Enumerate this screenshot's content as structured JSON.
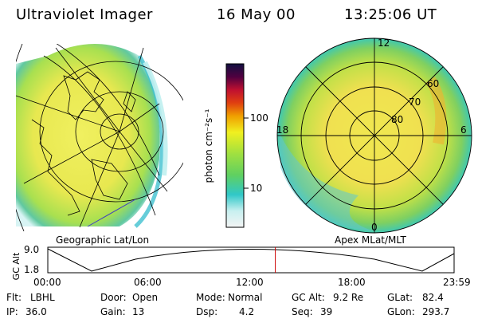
{
  "header": {
    "instrument": "Ultraviolet Imager",
    "date": "16 May 00",
    "time": "13:25:06 UT"
  },
  "geo_panel": {
    "caption": "Geographic Lat/Lon"
  },
  "apex_panel": {
    "caption": "Apex MLat/MLT",
    "mlt_labels": {
      "top": "12",
      "left": "18",
      "right": "6",
      "bottom": "0"
    },
    "lat_labels": [
      "60",
      "70",
      "80"
    ]
  },
  "colorbar": {
    "unit_label": "photon cm⁻²s⁻¹",
    "ticks": [
      "100",
      "10"
    ],
    "scale": "log"
  },
  "timeline": {
    "y_label": "GC Alt",
    "y_max": "9.0",
    "y_min": "1.8",
    "x_ticks": [
      "00:00",
      "06:00",
      "12:00",
      "18:00",
      "23:59"
    ],
    "current_time_fraction": 0.56,
    "marker_color": "#cc0000"
  },
  "status": {
    "row1": [
      {
        "key": "Flt:",
        "value": "LBHL"
      },
      {
        "key": "Door:",
        "value": "Open"
      },
      {
        "key": "Mode:",
        "value": "Normal"
      },
      {
        "key": "GC Alt:",
        "value": "9.2 Re"
      },
      {
        "key": "GLat:",
        "value": "82.4"
      }
    ],
    "row2": [
      {
        "key": "IP:",
        "value": "36.0"
      },
      {
        "key": "Gain:",
        "value": "13"
      },
      {
        "key": "Dsp:",
        "value": "4.2"
      },
      {
        "key": "Seq:",
        "value": "39"
      },
      {
        "key": "GLon:",
        "value": "293.7"
      }
    ]
  }
}
